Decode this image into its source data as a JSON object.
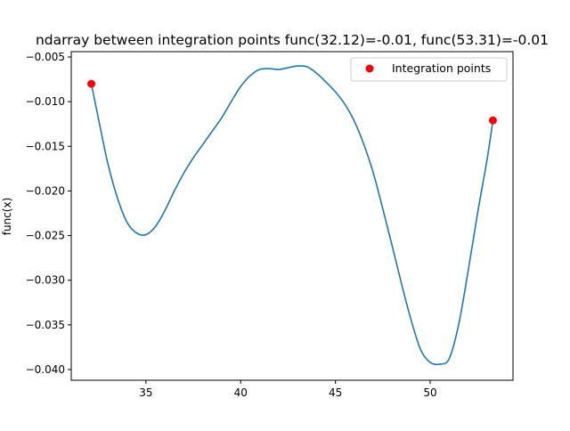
{
  "chart_data": {
    "type": "line",
    "title": "ndarray between integration points func(32.12)=-0.01, func(53.31)=-0.01",
    "xlabel": "",
    "ylabel": "func(x)",
    "xlim": [
      31.06,
      54.37
    ],
    "ylim": [
      -0.0412,
      -0.0044
    ],
    "x_ticks": [
      35,
      40,
      45,
      50
    ],
    "x_tick_labels": [
      "35",
      "40",
      "45",
      "50"
    ],
    "y_ticks": [
      -0.005,
      -0.01,
      -0.015,
      -0.02,
      -0.025,
      -0.03,
      -0.035,
      -0.04
    ],
    "y_tick_labels": [
      "−0.005",
      "−0.010",
      "−0.015",
      "−0.020",
      "−0.025",
      "−0.030",
      "−0.035",
      "−0.040"
    ],
    "grid": false,
    "legend_position": "top-right",
    "series": [
      {
        "color": "#1f77b4",
        "x": [
          32.12,
          32.6,
          33.0,
          33.5,
          34.0,
          34.5,
          35.0,
          35.5,
          36.0,
          36.5,
          37.0,
          37.5,
          38.0,
          38.5,
          39.0,
          39.5,
          40.0,
          40.5,
          41.0,
          41.5,
          42.0,
          42.5,
          43.0,
          43.5,
          44.0,
          44.5,
          45.0,
          45.5,
          46.0,
          46.5,
          47.0,
          47.5,
          48.0,
          48.5,
          49.0,
          49.5,
          50.0,
          50.5,
          51.0,
          51.5,
          52.0,
          52.5,
          53.0,
          53.31
        ],
        "y": [
          -0.008,
          -0.013,
          -0.017,
          -0.0208,
          -0.0235,
          -0.0247,
          -0.0249,
          -0.024,
          -0.0222,
          -0.02,
          -0.018,
          -0.0163,
          -0.0148,
          -0.0133,
          -0.0118,
          -0.01,
          -0.0083,
          -0.0071,
          -0.0064,
          -0.0063,
          -0.0064,
          -0.0062,
          -0.006,
          -0.0061,
          -0.0068,
          -0.0078,
          -0.0089,
          -0.0103,
          -0.0122,
          -0.0148,
          -0.018,
          -0.022,
          -0.0262,
          -0.0305,
          -0.0345,
          -0.0378,
          -0.0392,
          -0.0394,
          -0.0388,
          -0.035,
          -0.029,
          -0.0225,
          -0.0165,
          -0.0121
        ]
      }
    ],
    "points": {
      "name": "Integration points",
      "color": "#ff0000",
      "x": [
        32.12,
        53.31
      ],
      "y": [
        -0.008,
        -0.0121
      ]
    }
  }
}
